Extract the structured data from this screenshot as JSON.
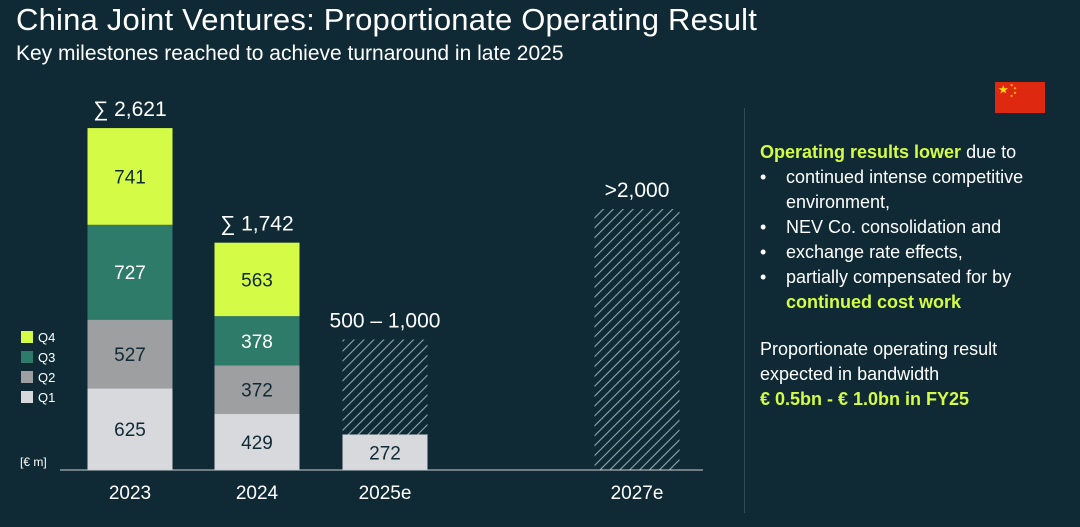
{
  "header": {
    "title": "China Joint Ventures: Proportionate Operating Result",
    "subtitle": "Key milestones reached to achieve turnaround in late 2025"
  },
  "panel": {
    "intro_highlight": "Operating results lower",
    "intro_rest": " due to",
    "bullets": [
      "continued intense competitive environment,",
      "NEV Co. consolidation and",
      "exchange rate effects,"
    ],
    "last_bullet_prefix": "partially compensated for by ",
    "last_bullet_highlight": "continued cost work",
    "para2_text": "Proportionate operating result expected in bandwidth",
    "para2_highlight": "€ 0.5bn - € 1.0bn in FY25"
  },
  "colors": {
    "background": "#0f2a35",
    "Q4": "#d4fb46",
    "Q3": "#2f7b6a",
    "Q2": "#9e9fa1",
    "Q1": "#d8d9dc",
    "accent": "#d4fb46",
    "flag_red": "#de2910",
    "flag_star": "#ffde00"
  },
  "flag_icon": "china-flag-icon",
  "chart_data": {
    "type": "bar",
    "stacked": true,
    "unit_label": "[€ m]",
    "categories": [
      "2023",
      "2024",
      "2025e",
      "2027e"
    ],
    "series": [
      {
        "name": "Q1",
        "values": [
          625,
          429,
          272,
          null
        ]
      },
      {
        "name": "Q2",
        "values": [
          527,
          372,
          null,
          null
        ]
      },
      {
        "name": "Q3",
        "values": [
          727,
          378,
          null,
          null
        ]
      },
      {
        "name": "Q4",
        "values": [
          741,
          563,
          null,
          null
        ]
      }
    ],
    "totals": [
      "∑ 2,621",
      "∑ 1,742",
      "500 – 1,000",
      ">2,000"
    ],
    "estimate_ranges": [
      {
        "category": "2025e",
        "from": 272,
        "to": 1000,
        "style": "hatched"
      },
      {
        "category": "2027e",
        "from": 0,
        "to": 2000,
        "style": "hatched"
      }
    ],
    "legend": [
      "Q4",
      "Q3",
      "Q2",
      "Q1"
    ],
    "legend_position": "left",
    "grid": false,
    "ylim": [
      0,
      2621
    ]
  }
}
